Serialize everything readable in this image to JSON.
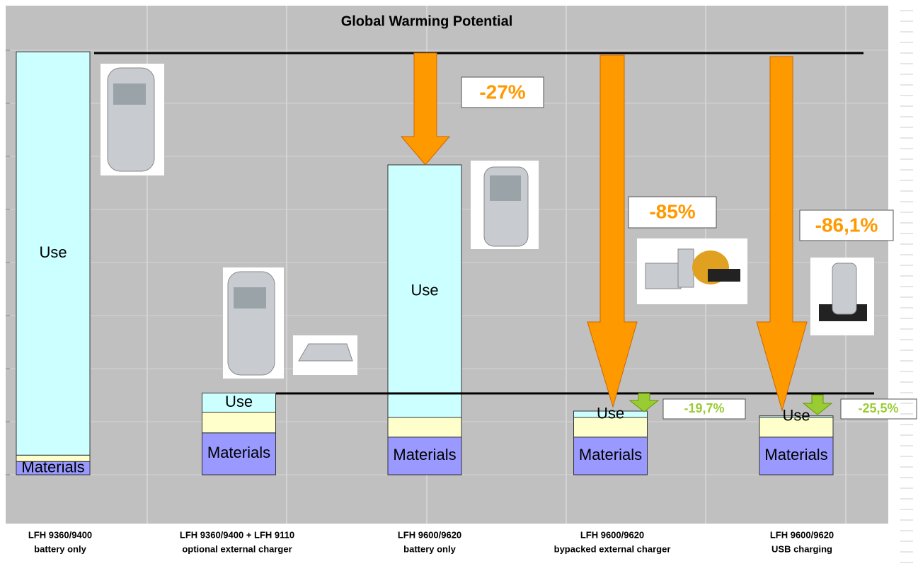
{
  "chart_data": {
    "type": "stacked-bar",
    "title": "Global Warming Potential",
    "categories": [
      [
        "LFH 9360/9400",
        "battery only"
      ],
      [
        "LFH 9360/9400 + LFH 9110",
        "optional external charger"
      ],
      [
        "LFH 9600/9620",
        "battery only"
      ],
      [
        "LFH 9600/9620",
        "bypacked external charger"
      ],
      [
        "LFH 9600/9620",
        "USB charging"
      ]
    ],
    "series": [
      {
        "name": "Materials",
        "color": "#9999ff",
        "values": [
          0.25,
          0.79,
          0.71,
          0.71,
          0.71
        ]
      },
      {
        "name": null,
        "color": "#ffffcc",
        "values": [
          0.12,
          0.39,
          0.37,
          0.37,
          0.37
        ]
      },
      {
        "name": "Use",
        "color": "#ccffff",
        "values": [
          7.6,
          0.36,
          4.76,
          0.12,
          0.03
        ]
      }
    ],
    "ylim": [
      -0.92,
      8.84
    ],
    "yticks": [
      0,
      1,
      2,
      3,
      4,
      5,
      6,
      7,
      8
    ],
    "grid": true,
    "annotations": [
      {
        "text": "-27%"
      },
      {
        "text": "-85%"
      },
      {
        "text": "-86,1%"
      },
      {
        "text": "-19,7%"
      },
      {
        "text": "-25,5%"
      }
    ]
  }
}
